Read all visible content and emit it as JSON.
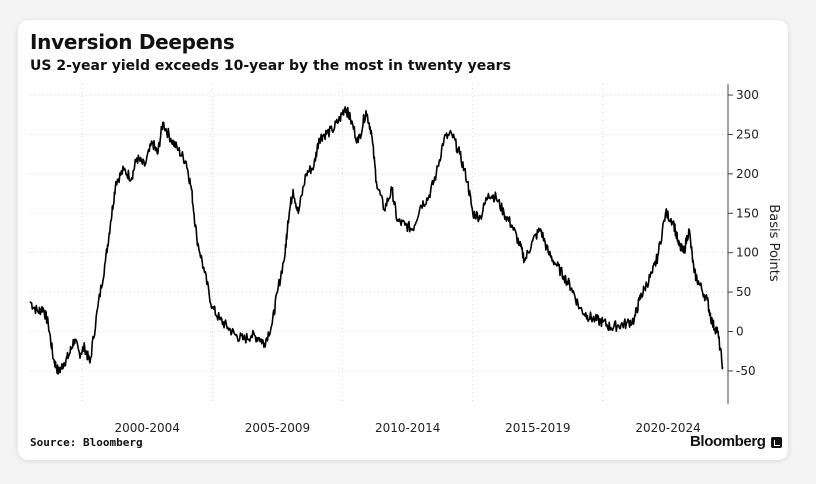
{
  "header": {
    "title": "Inversion Deepens",
    "subtitle": "US 2-year yield exceeds 10-year by the most in twenty years"
  },
  "footer": {
    "source": "Source: Bloomberg",
    "brand": "Bloomberg",
    "brand_icon": "bloomberg-chart-icon"
  },
  "colors": {
    "line": "#000000",
    "grid": "#bdbdbd",
    "axis": "#444444"
  },
  "chart_data": {
    "type": "line",
    "title": "Inversion Deepens",
    "subtitle": "US 2-year yield exceeds 10-year by the most in twenty years",
    "ylabel": "Basis Points",
    "ylim": [
      -92,
      314
    ],
    "xlim": [
      1998.0,
      2024.8
    ],
    "y_axis_side": "right",
    "yticks": [
      300,
      250,
      200,
      150,
      100,
      50,
      0,
      -50
    ],
    "x_tick_years": [
      2000,
      2005,
      2010,
      2015,
      2020
    ],
    "x_ticks": [
      "2000-2004",
      "2005-2009",
      "2010-2014",
      "2015-2019",
      "2020-2024"
    ],
    "grid": {
      "vertical_dotted": true,
      "horizontal_dotted": true
    },
    "legend": "none",
    "series": [
      {
        "x": [
          1998.0,
          1998.3,
          1998.5,
          1998.7,
          1998.9,
          1999.1,
          1999.3,
          1999.5,
          1999.7,
          1999.9,
          2000.1,
          2000.3,
          2000.6,
          2000.9,
          2001.1,
          2001.3,
          2001.6,
          2001.9,
          2002.1,
          2002.4,
          2002.7,
          2002.9,
          2003.1,
          2003.4,
          2003.7,
          2004.0,
          2004.2,
          2004.4,
          2004.7,
          2005.0,
          2005.3,
          2005.6,
          2005.9,
          2006.2,
          2006.5,
          2006.8,
          2007.0,
          2007.3,
          2007.5,
          2007.8,
          2007.9,
          2008.1,
          2008.3,
          2008.6,
          2008.9,
          2009.1,
          2009.3,
          2009.6,
          2009.9,
          2010.1,
          2010.3,
          2010.6,
          2010.9,
          2011.1,
          2011.3,
          2011.6,
          2011.9,
          2012.1,
          2012.4,
          2012.7,
          2013.0,
          2013.3,
          2013.6,
          2013.9,
          2014.2,
          2014.5,
          2014.8,
          2015.0,
          2015.3,
          2015.6,
          2015.9,
          2016.2,
          2016.5,
          2016.8,
          2017.0,
          2017.3,
          2017.6,
          2017.9,
          2018.2,
          2018.5,
          2018.8,
          2019.1,
          2019.4,
          2019.7,
          2020.0,
          2020.3,
          2020.6,
          2020.9,
          2021.2,
          2021.4,
          2021.6,
          2021.9,
          2022.1,
          2022.4,
          2022.7,
          2022.9,
          2023.1,
          2023.3,
          2023.5,
          2023.7,
          2024.0,
          2024.2,
          2024.4,
          2024.6
        ],
        "y": [
          38,
          25,
          30,
          10,
          -35,
          -52,
          -40,
          -30,
          -10,
          -28,
          -20,
          -40,
          30,
          90,
          140,
          190,
          205,
          195,
          220,
          210,
          240,
          225,
          265,
          245,
          230,
          215,
          180,
          120,
          75,
          30,
          15,
          5,
          -5,
          -10,
          -5,
          -8,
          -15,
          10,
          50,
          100,
          140,
          180,
          150,
          200,
          210,
          245,
          250,
          255,
          270,
          285,
          270,
          240,
          280,
          255,
          190,
          155,
          180,
          140,
          135,
          130,
          160,
          170,
          200,
          245,
          250,
          225,
          190,
          150,
          145,
          175,
          170,
          150,
          135,
          110,
          90,
          115,
          130,
          100,
          85,
          70,
          55,
          30,
          20,
          15,
          12,
          5,
          8,
          10,
          15,
          40,
          55,
          75,
          95,
          150,
          140,
          110,
          100,
          130,
          75,
          60,
          40,
          10,
          0,
          -45
        ]
      }
    ]
  }
}
